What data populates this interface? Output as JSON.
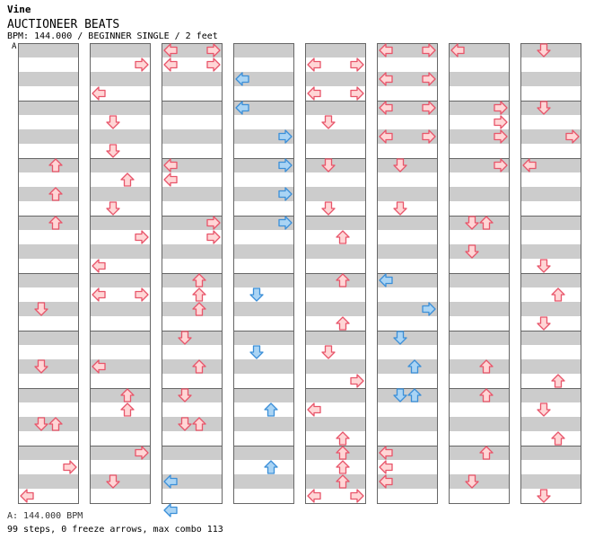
{
  "header": {
    "artist": "Vine",
    "title": "AUCTIONEER BEATS",
    "meta": "BPM: 144.000 / BEGINNER SINGLE / 2 feet",
    "bpm_marker": "A"
  },
  "footer": {
    "bpm_summary": "A: 144.000 BPM",
    "stats": "99 steps, 0 freeze arrows, max combo 113"
  },
  "colors": {
    "background": "#ffffff",
    "stripe": "#cccccc",
    "measure_border": "#666666",
    "arrow_red_fill": "#ffd6d6",
    "arrow_red_stroke": "#e8556a",
    "arrow_blue_fill": "#aad4f4",
    "arrow_blue_stroke": "#3b8fd8"
  },
  "chart_data": {
    "type": "step-chart",
    "mode": "BEGINNER SINGLE",
    "bpm": 144.0,
    "columns": 8,
    "measures_per_column": 8,
    "lanes": [
      "left",
      "down",
      "up",
      "right"
    ],
    "note_colors": {
      "red": "quarter",
      "blue": "eighth"
    },
    "notes": [
      {
        "c": 0,
        "r": 8,
        "lanes": [
          "up"
        ],
        "color": "red"
      },
      {
        "c": 0,
        "r": 10,
        "lanes": [
          "up"
        ],
        "color": "red"
      },
      {
        "c": 0,
        "r": 12,
        "lanes": [
          "up"
        ],
        "color": "red"
      },
      {
        "c": 0,
        "r": 18,
        "lanes": [
          "down"
        ],
        "color": "red"
      },
      {
        "c": 0,
        "r": 22,
        "lanes": [
          "down"
        ],
        "color": "red"
      },
      {
        "c": 0,
        "r": 26,
        "lanes": [
          "down",
          "up"
        ],
        "color": "red"
      },
      {
        "c": 0,
        "r": 29,
        "lanes": [
          "right"
        ],
        "color": "red"
      },
      {
        "c": 0,
        "r": 31,
        "lanes": [
          "left"
        ],
        "color": "red"
      },
      {
        "c": 1,
        "r": 1,
        "lanes": [
          "right"
        ],
        "color": "red"
      },
      {
        "c": 1,
        "r": 3,
        "lanes": [
          "left"
        ],
        "color": "red"
      },
      {
        "c": 1,
        "r": 5,
        "lanes": [
          "down"
        ],
        "color": "red"
      },
      {
        "c": 1,
        "r": 7,
        "lanes": [
          "down"
        ],
        "color": "red"
      },
      {
        "c": 1,
        "r": 9,
        "lanes": [
          "up"
        ],
        "color": "red"
      },
      {
        "c": 1,
        "r": 11,
        "lanes": [
          "down"
        ],
        "color": "red"
      },
      {
        "c": 1,
        "r": 13,
        "lanes": [
          "right"
        ],
        "color": "red"
      },
      {
        "c": 1,
        "r": 15,
        "lanes": [
          "left"
        ],
        "color": "red"
      },
      {
        "c": 1,
        "r": 17,
        "lanes": [
          "left",
          "right"
        ],
        "color": "red"
      },
      {
        "c": 1,
        "r": 22,
        "lanes": [
          "left"
        ],
        "color": "red"
      },
      {
        "c": 1,
        "r": 24,
        "lanes": [
          "up"
        ],
        "color": "red"
      },
      {
        "c": 1,
        "r": 25,
        "lanes": [
          "up"
        ],
        "color": "red"
      },
      {
        "c": 1,
        "r": 28,
        "lanes": [
          "right"
        ],
        "color": "red"
      },
      {
        "c": 1,
        "r": 30,
        "lanes": [
          "down"
        ],
        "color": "red"
      },
      {
        "c": 2,
        "r": 0,
        "lanes": [
          "left",
          "right"
        ],
        "color": "red"
      },
      {
        "c": 2,
        "r": 1,
        "lanes": [
          "left",
          "right"
        ],
        "color": "red"
      },
      {
        "c": 2,
        "r": 8,
        "lanes": [
          "left"
        ],
        "color": "red"
      },
      {
        "c": 2,
        "r": 9,
        "lanes": [
          "left"
        ],
        "color": "red"
      },
      {
        "c": 2,
        "r": 12,
        "lanes": [
          "right"
        ],
        "color": "red"
      },
      {
        "c": 2,
        "r": 13,
        "lanes": [
          "right"
        ],
        "color": "red"
      },
      {
        "c": 2,
        "r": 16,
        "lanes": [
          "up"
        ],
        "color": "red"
      },
      {
        "c": 2,
        "r": 17,
        "lanes": [
          "up"
        ],
        "color": "red"
      },
      {
        "c": 2,
        "r": 18,
        "lanes": [
          "up"
        ],
        "color": "red"
      },
      {
        "c": 2,
        "r": 20,
        "lanes": [
          "down"
        ],
        "color": "red"
      },
      {
        "c": 2,
        "r": 22,
        "lanes": [
          "up"
        ],
        "color": "red"
      },
      {
        "c": 2,
        "r": 24,
        "lanes": [
          "down"
        ],
        "color": "red"
      },
      {
        "c": 2,
        "r": 26,
        "lanes": [
          "down",
          "up"
        ],
        "color": "red"
      },
      {
        "c": 2,
        "r": 30,
        "lanes": [
          "left"
        ],
        "color": "blue"
      },
      {
        "c": 2,
        "r": 32,
        "lanes": [
          "left"
        ],
        "color": "blue"
      },
      {
        "c": 3,
        "r": 2,
        "lanes": [
          "left"
        ],
        "color": "blue"
      },
      {
        "c": 3,
        "r": 4,
        "lanes": [
          "left"
        ],
        "color": "blue"
      },
      {
        "c": 3,
        "r": 6,
        "lanes": [
          "right"
        ],
        "color": "blue"
      },
      {
        "c": 3,
        "r": 8,
        "lanes": [
          "right"
        ],
        "color": "blue"
      },
      {
        "c": 3,
        "r": 10,
        "lanes": [
          "right"
        ],
        "color": "blue"
      },
      {
        "c": 3,
        "r": 12,
        "lanes": [
          "right"
        ],
        "color": "blue"
      },
      {
        "c": 3,
        "r": 17,
        "lanes": [
          "down"
        ],
        "color": "blue"
      },
      {
        "c": 3,
        "r": 21,
        "lanes": [
          "down"
        ],
        "color": "blue"
      },
      {
        "c": 3,
        "r": 25,
        "lanes": [
          "up"
        ],
        "color": "blue"
      },
      {
        "c": 3,
        "r": 29,
        "lanes": [
          "up"
        ],
        "color": "blue"
      },
      {
        "c": 4,
        "r": 1,
        "lanes": [
          "left",
          "right"
        ],
        "color": "red"
      },
      {
        "c": 4,
        "r": 3,
        "lanes": [
          "left",
          "right"
        ],
        "color": "red"
      },
      {
        "c": 4,
        "r": 5,
        "lanes": [
          "down"
        ],
        "color": "red"
      },
      {
        "c": 4,
        "r": 8,
        "lanes": [
          "down"
        ],
        "color": "red"
      },
      {
        "c": 4,
        "r": 11,
        "lanes": [
          "down"
        ],
        "color": "red"
      },
      {
        "c": 4,
        "r": 13,
        "lanes": [
          "up"
        ],
        "color": "red"
      },
      {
        "c": 4,
        "r": 16,
        "lanes": [
          "up"
        ],
        "color": "red"
      },
      {
        "c": 4,
        "r": 19,
        "lanes": [
          "up"
        ],
        "color": "red"
      },
      {
        "c": 4,
        "r": 21,
        "lanes": [
          "down"
        ],
        "color": "red"
      },
      {
        "c": 4,
        "r": 23,
        "lanes": [
          "right"
        ],
        "color": "red"
      },
      {
        "c": 4,
        "r": 25,
        "lanes": [
          "left"
        ],
        "color": "red"
      },
      {
        "c": 4,
        "r": 27,
        "lanes": [
          "up"
        ],
        "color": "red"
      },
      {
        "c": 4,
        "r": 28,
        "lanes": [
          "up"
        ],
        "color": "red"
      },
      {
        "c": 4,
        "r": 29,
        "lanes": [
          "up"
        ],
        "color": "red"
      },
      {
        "c": 4,
        "r": 30,
        "lanes": [
          "up"
        ],
        "color": "red"
      },
      {
        "c": 4,
        "r": 31,
        "lanes": [
          "left",
          "right"
        ],
        "color": "red"
      },
      {
        "c": 5,
        "r": 0,
        "lanes": [
          "left",
          "right"
        ],
        "color": "red"
      },
      {
        "c": 5,
        "r": 2,
        "lanes": [
          "left",
          "right"
        ],
        "color": "red"
      },
      {
        "c": 5,
        "r": 4,
        "lanes": [
          "left",
          "right"
        ],
        "color": "red"
      },
      {
        "c": 5,
        "r": 6,
        "lanes": [
          "left",
          "right"
        ],
        "color": "red"
      },
      {
        "c": 5,
        "r": 8,
        "lanes": [
          "down"
        ],
        "color": "red"
      },
      {
        "c": 5,
        "r": 11,
        "lanes": [
          "down"
        ],
        "color": "red"
      },
      {
        "c": 5,
        "r": 16,
        "lanes": [
          "left"
        ],
        "color": "blue"
      },
      {
        "c": 5,
        "r": 18,
        "lanes": [
          "right"
        ],
        "color": "blue"
      },
      {
        "c": 5,
        "r": 20,
        "lanes": [
          "down"
        ],
        "color": "blue"
      },
      {
        "c": 5,
        "r": 22,
        "lanes": [
          "up"
        ],
        "color": "blue"
      },
      {
        "c": 5,
        "r": 24,
        "lanes": [
          "down",
          "up"
        ],
        "color": "blue"
      },
      {
        "c": 5,
        "r": 28,
        "lanes": [
          "left"
        ],
        "color": "red"
      },
      {
        "c": 5,
        "r": 29,
        "lanes": [
          "left"
        ],
        "color": "red"
      },
      {
        "c": 5,
        "r": 30,
        "lanes": [
          "left"
        ],
        "color": "red"
      },
      {
        "c": 6,
        "r": 0,
        "lanes": [
          "left"
        ],
        "color": "red"
      },
      {
        "c": 6,
        "r": 4,
        "lanes": [
          "right"
        ],
        "color": "red"
      },
      {
        "c": 6,
        "r": 5,
        "lanes": [
          "right"
        ],
        "color": "red"
      },
      {
        "c": 6,
        "r": 6,
        "lanes": [
          "right"
        ],
        "color": "red"
      },
      {
        "c": 6,
        "r": 8,
        "lanes": [
          "right"
        ],
        "color": "red"
      },
      {
        "c": 6,
        "r": 12,
        "lanes": [
          "down",
          "up"
        ],
        "color": "red"
      },
      {
        "c": 6,
        "r": 14,
        "lanes": [
          "down"
        ],
        "color": "red"
      },
      {
        "c": 6,
        "r": 22,
        "lanes": [
          "up"
        ],
        "color": "red"
      },
      {
        "c": 6,
        "r": 24,
        "lanes": [
          "up"
        ],
        "color": "red"
      },
      {
        "c": 6,
        "r": 28,
        "lanes": [
          "up"
        ],
        "color": "red"
      },
      {
        "c": 6,
        "r": 30,
        "lanes": [
          "down"
        ],
        "color": "red"
      },
      {
        "c": 7,
        "r": 0,
        "lanes": [
          "down"
        ],
        "color": "red"
      },
      {
        "c": 7,
        "r": 4,
        "lanes": [
          "down"
        ],
        "color": "red"
      },
      {
        "c": 7,
        "r": 6,
        "lanes": [
          "right"
        ],
        "color": "red"
      },
      {
        "c": 7,
        "r": 8,
        "lanes": [
          "left"
        ],
        "color": "red"
      },
      {
        "c": 7,
        "r": 15,
        "lanes": [
          "down"
        ],
        "color": "red"
      },
      {
        "c": 7,
        "r": 17,
        "lanes": [
          "up"
        ],
        "color": "red"
      },
      {
        "c": 7,
        "r": 19,
        "lanes": [
          "down"
        ],
        "color": "red"
      },
      {
        "c": 7,
        "r": 23,
        "lanes": [
          "up"
        ],
        "color": "red"
      },
      {
        "c": 7,
        "r": 25,
        "lanes": [
          "down"
        ],
        "color": "red"
      },
      {
        "c": 7,
        "r": 27,
        "lanes": [
          "up"
        ],
        "color": "red"
      },
      {
        "c": 7,
        "r": 31,
        "lanes": [
          "down"
        ],
        "color": "red"
      }
    ]
  }
}
